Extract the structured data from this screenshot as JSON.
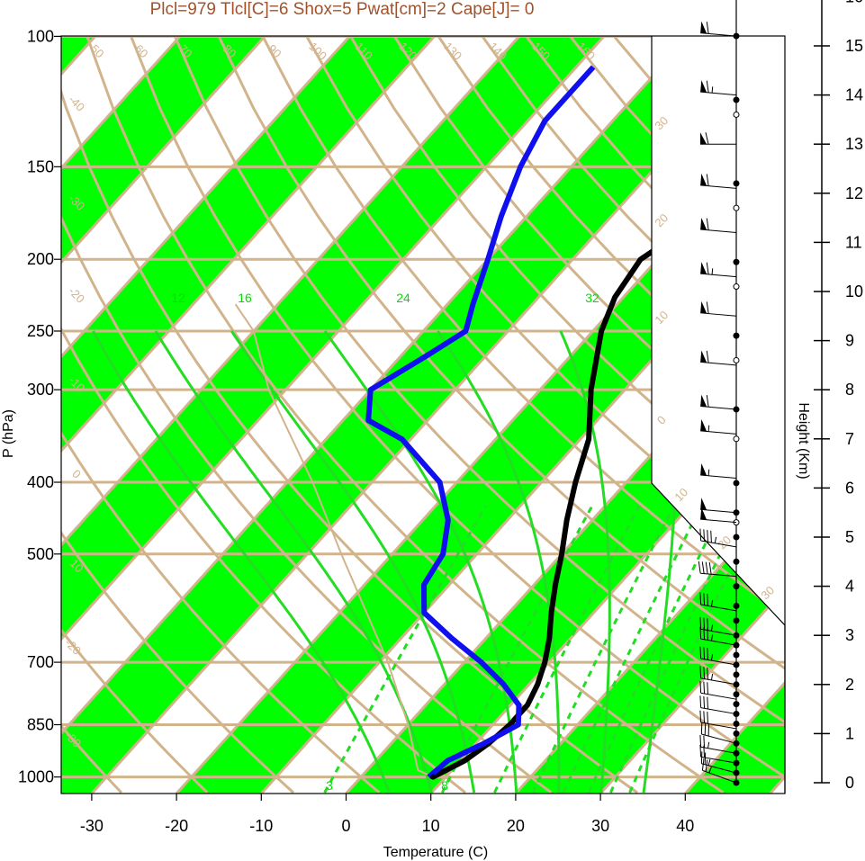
{
  "title": "Plcl=979 Tlcl[C]=6 Shox=5 Pwat[cm]=2 Cape[J]= 0",
  "colors": {
    "band": "#00ff00",
    "isoline": "#d2b48c",
    "moist": "#22dd22",
    "temperature": "#000000",
    "dewpoint": "#1010ee",
    "title": "#a0522d"
  },
  "chart_data": {
    "type": "line",
    "xlabel": "Temperature (C)",
    "ylabel": "P (hPa)",
    "y2label": "Height (Km)",
    "x_ticks": [
      -30,
      -20,
      -10,
      0,
      10,
      20,
      30,
      40
    ],
    "p_ticks": [
      100,
      150,
      200,
      250,
      300,
      400,
      500,
      700,
      850,
      1000
    ],
    "height_ticks_km": [
      0,
      1,
      2,
      3,
      4,
      5,
      6,
      7,
      8,
      9,
      10,
      11,
      12,
      13,
      14,
      15,
      16
    ],
    "ylim_hpa": [
      1050,
      100
    ],
    "xlim_c": [
      -34,
      52
    ],
    "isotherm_labels": [
      "-30",
      "-20",
      "-10",
      "0",
      "10",
      "20",
      "30",
      "40",
      "50",
      "60",
      "70",
      "80",
      "90",
      "100",
      "110",
      "120",
      "130",
      "140",
      "150",
      "160"
    ],
    "dry_adiabat_labels": [
      "-40",
      "-30",
      "-20",
      "-10",
      "0",
      "10",
      "20",
      "30",
      "40",
      "50",
      "60",
      "70",
      "80",
      "90",
      "100",
      "110",
      "120",
      "130",
      "150",
      "160"
    ],
    "mixing_ratio_labels": [
      "3",
      "8",
      "12",
      "16",
      "24",
      "32"
    ],
    "series": [
      {
        "name": "Temperature",
        "p": [
          1000,
          950,
          900,
          850,
          800,
          750,
          700,
          650,
          600,
          550,
          500,
          450,
          400,
          350,
          300,
          250,
          225,
          200,
          175,
          150,
          125,
          110
        ],
        "t": [
          8.5,
          10.5,
          11.5,
          12,
          12,
          11,
          9.5,
          7.5,
          5,
          2.5,
          0,
          -3,
          -6,
          -9,
          -14,
          -19,
          -21,
          -22,
          -19,
          -14,
          -4,
          6
        ]
      },
      {
        "name": "Dewpoint",
        "p": [
          1000,
          950,
          900,
          850,
          800,
          750,
          700,
          650,
          600,
          550,
          500,
          450,
          400,
          350,
          330,
          300,
          270,
          250,
          230,
          200,
          175,
          150,
          130,
          110
        ],
        "td": [
          8,
          8.5,
          11,
          13,
          11,
          7,
          2,
          -4,
          -10,
          -13,
          -14,
          -17,
          -22,
          -31,
          -37,
          -40,
          -37,
          -35,
          -37,
          -40,
          -43,
          -46,
          -48,
          -48
        ]
      }
    ],
    "parcel": {
      "name": "Parcel",
      "p": [
        1000,
        979,
        850,
        700,
        500,
        400,
        300,
        250,
        230
      ],
      "t": [
        8.5,
        6,
        0,
        -9,
        -26,
        -37,
        -52,
        -60,
        -65
      ]
    },
    "wind_heights_km": [
      0.0,
      0.2,
      0.4,
      0.6,
      0.8,
      1.1,
      1.4,
      1.7,
      2.0,
      2.4,
      2.8,
      3.0,
      3.5,
      4.2,
      4.8,
      5.3,
      5.5,
      6.2,
      7.1,
      7.6,
      8.5,
      9.5,
      10.3,
      11.2,
      12.1,
      13.0,
      14.0,
      15.2
    ],
    "wind_speeds_kt": [
      25,
      25,
      20,
      25,
      30,
      30,
      30,
      30,
      35,
      35,
      35,
      35,
      35,
      40,
      45,
      50,
      50,
      55,
      55,
      60,
      60,
      60,
      65,
      60,
      60,
      60,
      65,
      60
    ],
    "wind_dir_deg": [
      290,
      285,
      280,
      280,
      285,
      280,
      280,
      280,
      280,
      280,
      280,
      280,
      280,
      275,
      280,
      275,
      275,
      275,
      275,
      275,
      275,
      275,
      275,
      275,
      275,
      270,
      275,
      275
    ],
    "wind_observed_km": [
      0.0,
      0.2,
      0.4,
      0.6,
      0.8,
      1.0,
      1.2,
      1.4,
      1.6,
      1.8,
      2.0,
      2.2,
      2.4,
      2.6,
      2.8,
      3.0,
      3.3,
      3.6,
      4.0,
      4.5,
      5.0,
      5.5,
      6.1,
      7.6,
      9.1,
      10.6,
      12.2,
      13.9,
      15.2
    ],
    "wind_interp_km": [
      5.3,
      7.0,
      8.6,
      10.1,
      11.7,
      13.6
    ]
  }
}
